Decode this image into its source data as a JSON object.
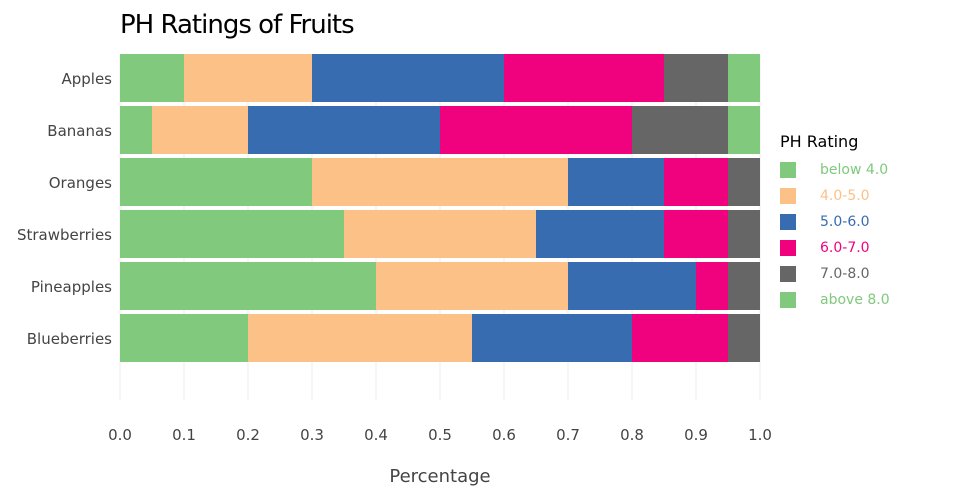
{
  "chart_data": {
    "type": "bar",
    "orientation": "horizontal",
    "stacked": true,
    "title": "PH Ratings of Fruits",
    "xlabel": "Percentage",
    "ylabel": "",
    "xlim": [
      0,
      1
    ],
    "x_ticks": [
      "0.0",
      "0.1",
      "0.2",
      "0.3",
      "0.4",
      "0.5",
      "0.6",
      "0.7",
      "0.8",
      "0.9",
      "1.0"
    ],
    "categories": [
      "Apples",
      "Bananas",
      "Oranges",
      "Strawberries",
      "Pineapples",
      "Blueberries"
    ],
    "legend_title": "PH Rating",
    "legend_position": "right",
    "grid": true,
    "series": [
      {
        "name": "below 4.0",
        "color": "#80c97d",
        "values": [
          0.1,
          0.05,
          0.3,
          0.35,
          0.4,
          0.2
        ]
      },
      {
        "name": "4.0-5.0",
        "color": "#fbc187",
        "values": [
          0.2,
          0.15,
          0.4,
          0.3,
          0.3,
          0.35
        ]
      },
      {
        "name": "5.0-6.0",
        "color": "#386cb0",
        "values": [
          0.3,
          0.3,
          0.15,
          0.2,
          0.2,
          0.25
        ]
      },
      {
        "name": "6.0-7.0",
        "color": "#f0027f",
        "values": [
          0.25,
          0.3,
          0.1,
          0.1,
          0.05,
          0.15
        ]
      },
      {
        "name": "7.0-8.0",
        "color": "#666666",
        "values": [
          0.1,
          0.15,
          0.05,
          0.05,
          0.05,
          0.05
        ]
      },
      {
        "name": "above 8.0",
        "color": "#80c97d",
        "values": [
          0.05,
          0.05,
          0.0,
          0.0,
          0.0,
          0.0
        ]
      }
    ]
  }
}
